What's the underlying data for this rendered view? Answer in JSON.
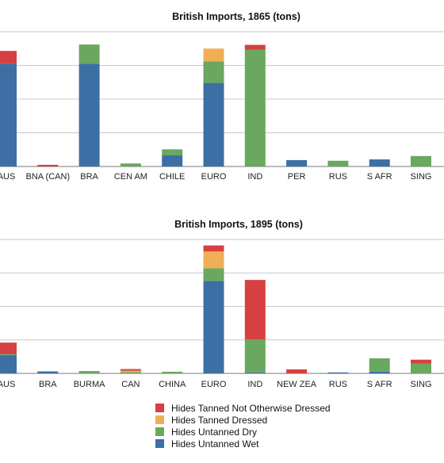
{
  "colors": {
    "Hides Untanned Wet": "#3d6fa4",
    "Hides Untanned Dry": "#6aa75f",
    "Hides Tanned Dressed": "#f0ae57",
    "Hides Tanned Not Otherwise Dressed": "#d64040"
  },
  "legend": [
    {
      "label": "Hides Tanned Not Otherwise Dressed",
      "color": "#d64040"
    },
    {
      "label": "Hides Tanned Dressed",
      "color": "#f0ae57"
    },
    {
      "label": "Hides Untanned Dry",
      "color": "#6aa75f"
    },
    {
      "label": "Hides Untanned Wet",
      "color": "#3d6fa4"
    }
  ],
  "chart_data": [
    {
      "type": "bar",
      "stacked": true,
      "title": "British Imports, 1865 (tons)",
      "categories": [
        "AUS",
        "BNA (CAN)",
        "BRA",
        "CEN AM",
        "CHILE",
        "EURO",
        "IND",
        "PER",
        "RUS",
        "S AFR",
        "SING"
      ],
      "ylim": [
        0,
        4
      ],
      "grid": true,
      "series": [
        {
          "name": "Hides Untanned Wet",
          "values": [
            3.05,
            0,
            3.05,
            0,
            0.33,
            2.48,
            0,
            0.19,
            0,
            0.21,
            0
          ]
        },
        {
          "name": "Hides Untanned Dry",
          "values": [
            0,
            0,
            0.57,
            0.09,
            0.18,
            0.64,
            3.47,
            0,
            0.17,
            0,
            0.31
          ]
        },
        {
          "name": "Hides Tanned Dressed",
          "values": [
            0,
            0,
            0,
            0,
            0,
            0.38,
            0,
            0,
            0,
            0,
            0
          ]
        },
        {
          "name": "Hides Tanned Not Otherwise Dressed",
          "values": [
            0.38,
            0.05,
            0,
            0,
            0,
            0,
            0.14,
            0,
            0,
            0,
            0
          ]
        }
      ]
    },
    {
      "type": "bar",
      "stacked": true,
      "title": "British Imports, 1895 (tons)",
      "categories": [
        "AUS",
        "BRA",
        "BURMA",
        "CAN",
        "CHINA",
        "EURO",
        "IND",
        "NEW ZEA",
        "RUS",
        "S AFR",
        "SING"
      ],
      "ylim": [
        0,
        4
      ],
      "grid": true,
      "series": [
        {
          "name": "Hides Untanned Wet",
          "values": [
            0.55,
            0.06,
            0,
            0,
            0,
            2.76,
            0.03,
            0,
            0.03,
            0.05,
            0
          ]
        },
        {
          "name": "Hides Untanned Dry",
          "values": [
            0.03,
            0,
            0.07,
            0.04,
            0.05,
            0.38,
            0.98,
            0,
            0,
            0.4,
            0.29
          ]
        },
        {
          "name": "Hides Tanned Dressed",
          "values": [
            0,
            0,
            0,
            0.04,
            0,
            0.5,
            0,
            0,
            0,
            0,
            0
          ]
        },
        {
          "name": "Hides Tanned Not Otherwise Dressed",
          "values": [
            0.34,
            0,
            0,
            0.05,
            0,
            0.18,
            1.78,
            0.12,
            0,
            0,
            0.12
          ]
        }
      ]
    }
  ]
}
